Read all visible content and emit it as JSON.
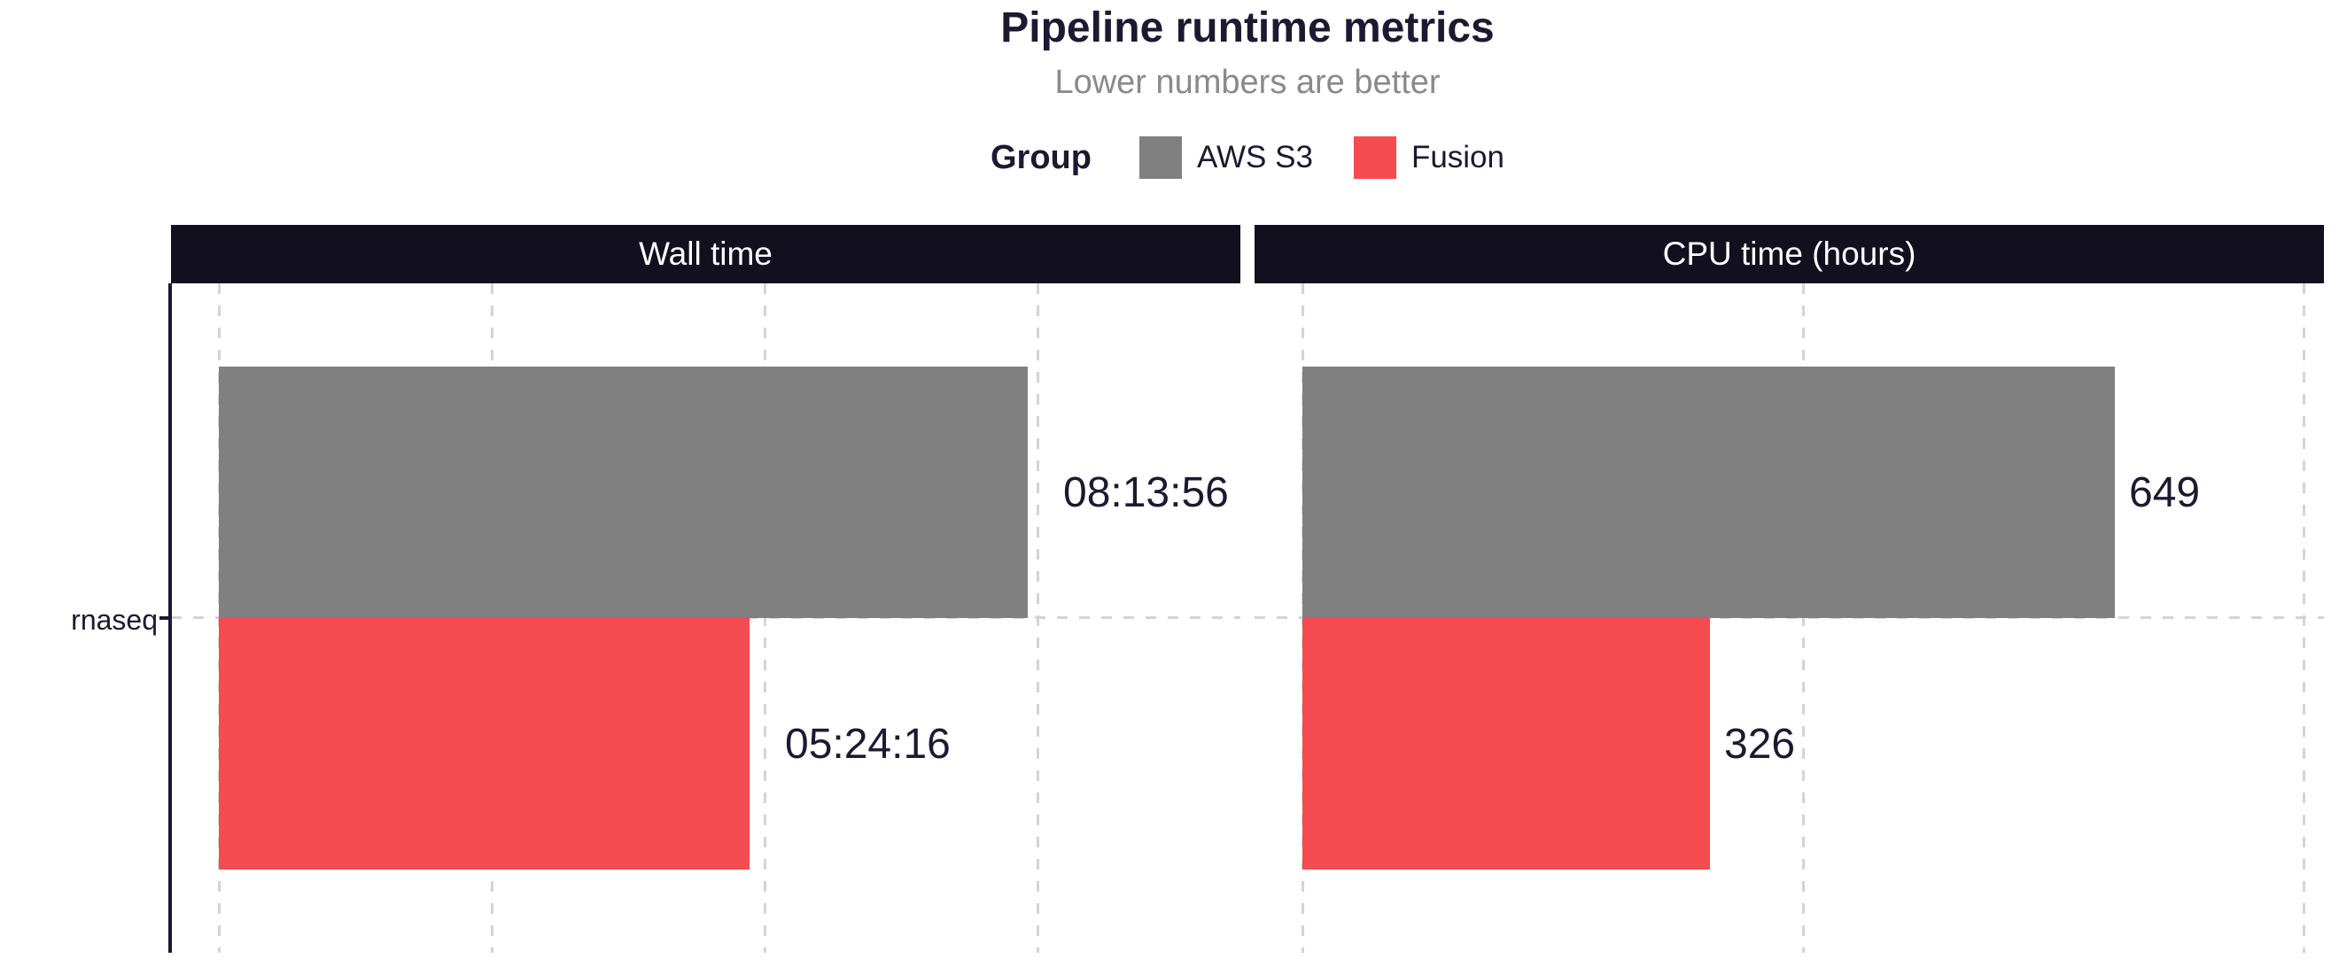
{
  "header": {
    "title": "Pipeline runtime metrics",
    "subtitle": "Lower numbers are better"
  },
  "legend": {
    "title": "Group",
    "items": [
      {
        "label": "AWS S3",
        "color": "#808080"
      },
      {
        "label": "Fusion",
        "color": "#f44c50"
      }
    ]
  },
  "y_axis": {
    "category_label": "rnaseq"
  },
  "chart_data": {
    "type": "bar",
    "orientation": "horizontal",
    "title": "Pipeline runtime metrics",
    "subtitle": "Lower numbers are better",
    "legend_position": "top",
    "legend_title": "Group",
    "grid": "dashed",
    "categories": [
      "rnaseq"
    ],
    "strip_background": "#120f1e",
    "strip_text_color": "#ffffff",
    "facets": [
      {
        "title": "Wall time",
        "tick_unit": "seconds",
        "tick_interval": 10000,
        "xlim": [
          0,
          37400
        ],
        "series": [
          {
            "name": "AWS S3",
            "value": 29636,
            "label": "08:13:56",
            "color": "#808080"
          },
          {
            "name": "Fusion",
            "value": 19456,
            "label": "05:24:16",
            "color": "#f44c50"
          }
        ]
      },
      {
        "title": "CPU time (hours)",
        "tick_unit": "hours",
        "tick_interval": 400,
        "xlim": [
          0,
          816
        ],
        "series": [
          {
            "name": "AWS S3",
            "value": 649,
            "label": "649",
            "color": "#808080"
          },
          {
            "name": "Fusion",
            "value": 326,
            "label": "326",
            "color": "#f44c50"
          }
        ]
      }
    ]
  }
}
